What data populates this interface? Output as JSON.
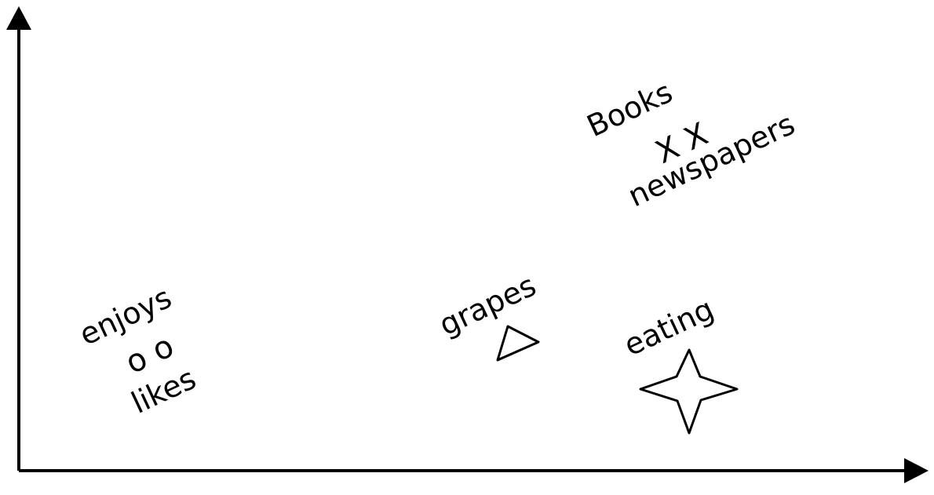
{
  "diagram": {
    "stroke_color": "#000000",
    "background": "#ffffff",
    "axes": {
      "x_axis": "arrow",
      "y_axis": "arrow"
    },
    "groups": [
      {
        "id": "top",
        "label_above": "Books",
        "marker_text": "X X",
        "label_below": "newspapers"
      },
      {
        "id": "left",
        "label_above": "enjoys",
        "marker_text": "o o",
        "label_below": "likes"
      },
      {
        "id": "middle",
        "label_above": "grapes",
        "shape": "triangle"
      },
      {
        "id": "right",
        "label_above": "eating",
        "shape": "four-point-star"
      }
    ]
  }
}
